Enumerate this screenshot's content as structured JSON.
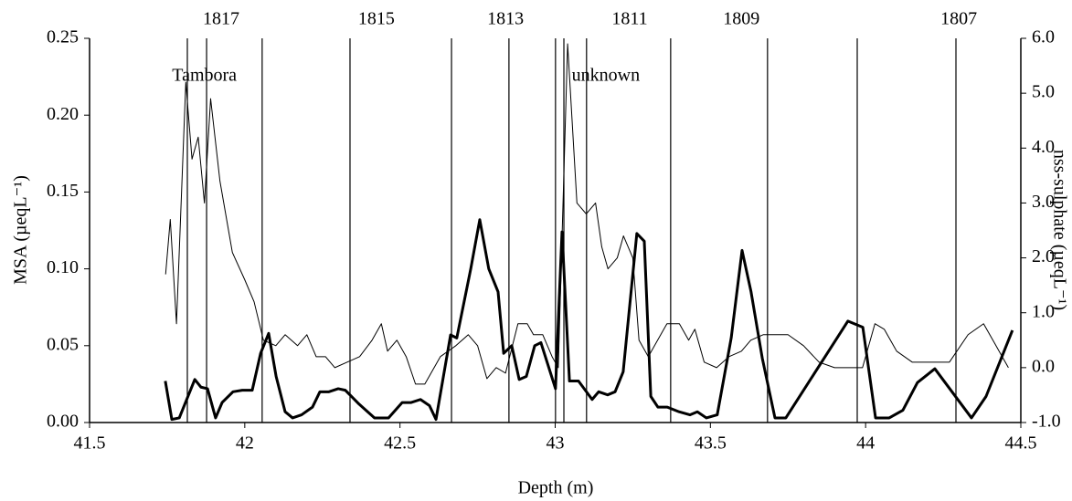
{
  "chart_data": {
    "type": "line",
    "x_label": "Depth (m)",
    "y_label": "MSA (µeqL⁻¹)",
    "y2_label": "nss-sulphate (µeqL⁻¹)",
    "xlim": [
      41.5,
      44.5
    ],
    "xticks": [
      41.5,
      42,
      42.5,
      43,
      43.5,
      44,
      44.5
    ],
    "ylim": [
      0,
      0.25
    ],
    "yticks": [
      {
        "value": 0,
        "label": "0.00"
      },
      {
        "value": 0.05,
        "label": "0.05"
      },
      {
        "value": 0.1,
        "label": "0.10"
      },
      {
        "value": 0.15,
        "label": "0.15"
      },
      {
        "value": 0.2,
        "label": "0.20"
      },
      {
        "value": 0.25,
        "label": "0.25"
      }
    ],
    "y2lim": [
      -1,
      6
    ],
    "y2ticks": [
      {
        "value": -1,
        "label": "-1.0"
      },
      {
        "value": 0,
        "label": "0.0"
      },
      {
        "value": 1,
        "label": "1.0"
      },
      {
        "value": 2,
        "label": "2.0"
      },
      {
        "value": 3,
        "label": "3.0"
      },
      {
        "value": 4,
        "label": "4.0"
      },
      {
        "value": 5,
        "label": "5.0"
      },
      {
        "value": 6,
        "label": "6.0"
      }
    ],
    "year_lines": [
      41.815,
      41.877,
      42.056,
      42.339,
      42.666,
      42.851,
      43.001,
      43.028,
      43.101,
      43.372,
      43.684,
      43.973,
      44.291
    ],
    "year_labels": [
      {
        "text": "1817",
        "x": 41.924
      },
      {
        "text": "1815",
        "x": 42.424
      },
      {
        "text": "1813",
        "x": 42.84
      },
      {
        "text": "1811",
        "x": 43.24
      },
      {
        "text": "1809",
        "x": 43.6
      },
      {
        "text": "1807",
        "x": 44.3
      }
    ],
    "annotations": [
      {
        "text": "Tambora",
        "x": 41.87,
        "y": 0.225
      },
      {
        "text": "unknown",
        "x": 43.163,
        "y": 0.225
      }
    ],
    "series": [
      {
        "color": "#000000",
        "width": 3,
        "x": [
          41.744,
          41.765,
          41.789,
          41.839,
          41.859,
          41.88,
          41.906,
          41.927,
          41.962,
          41.992,
          42.024,
          42.051,
          42.077,
          42.101,
          42.13,
          42.154,
          42.183,
          42.218,
          42.242,
          42.271,
          42.301,
          42.324,
          42.368,
          42.418,
          42.463,
          42.507,
          42.536,
          42.566,
          42.595,
          42.616,
          42.663,
          42.683,
          42.728,
          42.757,
          42.786,
          42.816,
          42.834,
          42.86,
          42.884,
          42.907,
          42.934,
          42.954,
          43.001,
          43.022,
          43.046,
          43.075,
          43.119,
          43.14,
          43.169,
          43.193,
          43.219,
          43.263,
          43.287,
          43.308,
          43.331,
          43.361,
          43.399,
          43.434,
          43.458,
          43.487,
          43.522,
          43.567,
          43.602,
          43.631,
          43.667,
          43.708,
          43.743,
          43.943,
          43.991,
          44.032,
          44.076,
          44.12,
          44.167,
          44.223,
          44.341,
          44.388,
          44.473
        ],
        "values": [
          0.027,
          0.002,
          0.003,
          0.028,
          0.023,
          0.022,
          0.003,
          0.013,
          0.02,
          0.021,
          0.021,
          0.045,
          0.058,
          0.03,
          0.007,
          0.003,
          0.005,
          0.01,
          0.02,
          0.02,
          0.022,
          0.021,
          0.012,
          0.003,
          0.003,
          0.013,
          0.013,
          0.015,
          0.011,
          0.002,
          0.057,
          0.055,
          0.1,
          0.132,
          0.1,
          0.085,
          0.045,
          0.05,
          0.028,
          0.03,
          0.05,
          0.052,
          0.022,
          0.124,
          0.027,
          0.027,
          0.015,
          0.02,
          0.018,
          0.02,
          0.033,
          0.123,
          0.118,
          0.017,
          0.01,
          0.01,
          0.007,
          0.005,
          0.007,
          0.003,
          0.005,
          0.055,
          0.112,
          0.085,
          0.042,
          0.003,
          0.003,
          0.066,
          0.062,
          0.003,
          0.003,
          0.008,
          0.026,
          0.035,
          0.003,
          0.017,
          0.06
        ]
      },
      {
        "color": "#000000",
        "width": 1,
        "axis": "y2",
        "x": [
          41.745,
          41.76,
          41.78,
          41.81,
          41.83,
          41.85,
          41.87,
          41.89,
          41.92,
          41.96,
          42.0,
          42.03,
          42.06,
          42.1,
          42.13,
          42.17,
          42.2,
          42.23,
          42.26,
          42.29,
          42.33,
          42.37,
          42.41,
          42.44,
          42.46,
          42.49,
          42.52,
          42.55,
          42.58,
          42.63,
          42.68,
          42.72,
          42.75,
          42.78,
          42.81,
          42.84,
          42.88,
          42.91,
          42.93,
          42.96,
          42.99,
          43.01,
          43.04,
          43.07,
          43.1,
          43.13,
          43.15,
          43.17,
          43.2,
          43.22,
          43.25,
          43.27,
          43.3,
          43.33,
          43.36,
          43.4,
          43.43,
          43.45,
          43.48,
          43.52,
          43.56,
          43.6,
          43.63,
          43.67,
          43.71,
          43.75,
          43.8,
          43.85,
          43.9,
          43.95,
          43.99,
          44.03,
          44.06,
          44.1,
          44.15,
          44.2,
          44.27,
          44.33,
          44.38,
          44.42,
          44.46
        ],
        "values": [
          1.7,
          2.7,
          0.8,
          5.2,
          3.8,
          4.2,
          3.0,
          4.9,
          3.4,
          2.1,
          1.6,
          1.2,
          0.5,
          0.4,
          0.6,
          0.4,
          0.6,
          0.2,
          0.2,
          0.0,
          0.1,
          0.2,
          0.5,
          0.8,
          0.3,
          0.5,
          0.2,
          -0.3,
          -0.3,
          0.2,
          0.4,
          0.6,
          0.4,
          -0.2,
          0.0,
          -0.1,
          0.8,
          0.8,
          0.6,
          0.6,
          0.2,
          0.0,
          5.9,
          3.0,
          2.8,
          3.0,
          2.2,
          1.8,
          2.0,
          2.4,
          2.0,
          0.5,
          0.2,
          0.5,
          0.8,
          0.8,
          0.5,
          0.7,
          0.1,
          0.0,
          0.2,
          0.3,
          0.5,
          0.6,
          0.6,
          0.6,
          0.4,
          0.1,
          0.0,
          0.0,
          0.0,
          0.8,
          0.7,
          0.3,
          0.1,
          0.1,
          0.1,
          0.6,
          0.8,
          0.4,
          0.0
        ]
      }
    ]
  }
}
